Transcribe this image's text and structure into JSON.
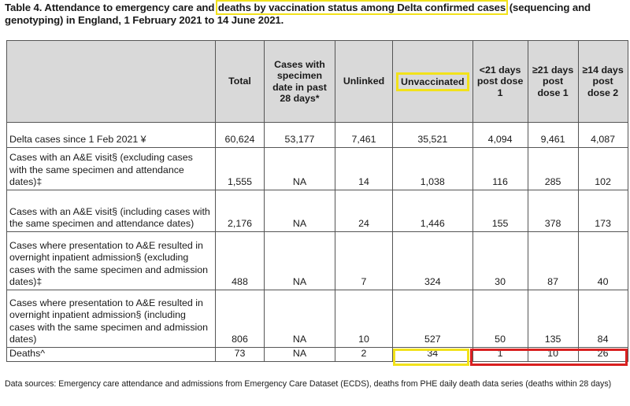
{
  "title": {
    "before": "Table 4. Attendance to emergency care and ",
    "highlight": "deaths by vaccination status among Delta confirmed cases",
    "after": " (sequencing and genotyping) in England, 1 February 2021 to 14 June 2021."
  },
  "table": {
    "headers": [
      "",
      "Total",
      "Cases with specimen date in past 28 days*",
      "Unlinked",
      "Unvaccinated",
      "<21 days post dose 1",
      "≥21 days post dose 1",
      "≥14 days post dose 2"
    ],
    "rows": [
      {
        "label": "Delta cases since 1 Feb 2021 ¥",
        "values": [
          "60,624",
          "53,177",
          "7,461",
          "35,521",
          "4,094",
          "9,461",
          "4,087"
        ]
      },
      {
        "label": "Cases with an A&E visit§ (excluding cases with the same specimen and attendance dates)‡",
        "values": [
          "1,555",
          "NA",
          "14",
          "1,038",
          "116",
          "285",
          "102"
        ]
      },
      {
        "label": "Cases with an A&E visit§ (including cases with the same specimen and attendance dates)",
        "values": [
          "2,176",
          "NA",
          "24",
          "1,446",
          "155",
          "378",
          "173"
        ]
      },
      {
        "label": "Cases where presentation to A&E resulted in overnight inpatient admission§ (excluding cases with the same specimen and admission dates)‡",
        "values": [
          "488",
          "NA",
          "7",
          "324",
          "30",
          "87",
          "40"
        ]
      },
      {
        "label": "Cases where presentation to A&E resulted in overnight inpatient admission§ (including cases with the same specimen and admission dates)",
        "values": [
          "806",
          "NA",
          "10",
          "527",
          "50",
          "135",
          "84"
        ]
      },
      {
        "label": "Deaths^",
        "values": [
          "73",
          "NA",
          "2",
          "34",
          "1",
          "10",
          "26"
        ]
      }
    ]
  },
  "footer": "Data sources: Emergency care attendance and admissions from Emergency Care Dataset (ECDS), deaths from PHE daily death data series (deaths within 28 days)",
  "colors": {
    "highlight_yellow": "#f2e21a",
    "highlight_red": "#d92020",
    "header_bg": "#d9d9d9"
  }
}
